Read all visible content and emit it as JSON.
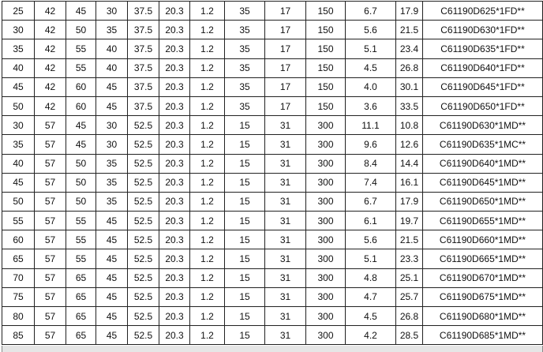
{
  "table": {
    "rows": [
      [
        "25",
        "42",
        "45",
        "30",
        "37.5",
        "20.3",
        "1.2",
        "35",
        "17",
        "150",
        "6.7",
        "17.9",
        "C61190D625*1FD**"
      ],
      [
        "30",
        "42",
        "50",
        "35",
        "37.5",
        "20.3",
        "1.2",
        "35",
        "17",
        "150",
        "5.6",
        "21.5",
        "C61190D630*1FD**"
      ],
      [
        "35",
        "42",
        "55",
        "40",
        "37.5",
        "20.3",
        "1.2",
        "35",
        "17",
        "150",
        "5.1",
        "23.4",
        "C61190D635*1FD**"
      ],
      [
        "40",
        "42",
        "55",
        "40",
        "37.5",
        "20.3",
        "1.2",
        "35",
        "17",
        "150",
        "4.5",
        "26.8",
        "C61190D640*1FD**"
      ],
      [
        "45",
        "42",
        "60",
        "45",
        "37.5",
        "20.3",
        "1.2",
        "35",
        "17",
        "150",
        "4.0",
        "30.1",
        "C61190D645*1FD**"
      ],
      [
        "50",
        "42",
        "60",
        "45",
        "37.5",
        "20.3",
        "1.2",
        "35",
        "17",
        "150",
        "3.6",
        "33.5",
        "C61190D650*1FD**"
      ],
      [
        "30",
        "57",
        "45",
        "30",
        "52.5",
        "20.3",
        "1.2",
        "15",
        "31",
        "300",
        "11.1",
        "10.8",
        "C61190D630*1MD**"
      ],
      [
        "35",
        "57",
        "45",
        "30",
        "52.5",
        "20.3",
        "1.2",
        "15",
        "31",
        "300",
        "9.6",
        "12.6",
        "C61190D635*1MC**"
      ],
      [
        "40",
        "57",
        "50",
        "35",
        "52.5",
        "20.3",
        "1.2",
        "15",
        "31",
        "300",
        "8.4",
        "14.4",
        "C61190D640*1MD**"
      ],
      [
        "45",
        "57",
        "50",
        "35",
        "52.5",
        "20.3",
        "1.2",
        "15",
        "31",
        "300",
        "7.4",
        "16.1",
        "C61190D645*1MD**"
      ],
      [
        "50",
        "57",
        "50",
        "35",
        "52.5",
        "20.3",
        "1.2",
        "15",
        "31",
        "300",
        "6.7",
        "17.9",
        "C61190D650*1MD**"
      ],
      [
        "55",
        "57",
        "55",
        "45",
        "52.5",
        "20.3",
        "1.2",
        "15",
        "31",
        "300",
        "6.1",
        "19.7",
        "C61190D655*1MD**"
      ],
      [
        "60",
        "57",
        "55",
        "45",
        "52.5",
        "20.3",
        "1.2",
        "15",
        "31",
        "300",
        "5.6",
        "21.5",
        "C61190D660*1MD**"
      ],
      [
        "65",
        "57",
        "55",
        "45",
        "52.5",
        "20.3",
        "1.2",
        "15",
        "31",
        "300",
        "5.1",
        "23.3",
        "C61190D665*1MD**"
      ],
      [
        "70",
        "57",
        "65",
        "45",
        "52.5",
        "20.3",
        "1.2",
        "15",
        "31",
        "300",
        "4.8",
        "25.1",
        "C61190D670*1MD**"
      ],
      [
        "75",
        "57",
        "65",
        "45",
        "52.5",
        "20.3",
        "1.2",
        "15",
        "31",
        "300",
        "4.7",
        "25.7",
        "C61190D675*1MD**"
      ],
      [
        "80",
        "57",
        "65",
        "45",
        "52.5",
        "20.3",
        "1.2",
        "15",
        "31",
        "300",
        "4.5",
        "26.8",
        "C61190D680*1MD**"
      ],
      [
        "85",
        "57",
        "65",
        "45",
        "52.5",
        "20.3",
        "1.2",
        "15",
        "31",
        "300",
        "4.2",
        "28.5",
        "C61190D685*1MD**"
      ]
    ]
  }
}
